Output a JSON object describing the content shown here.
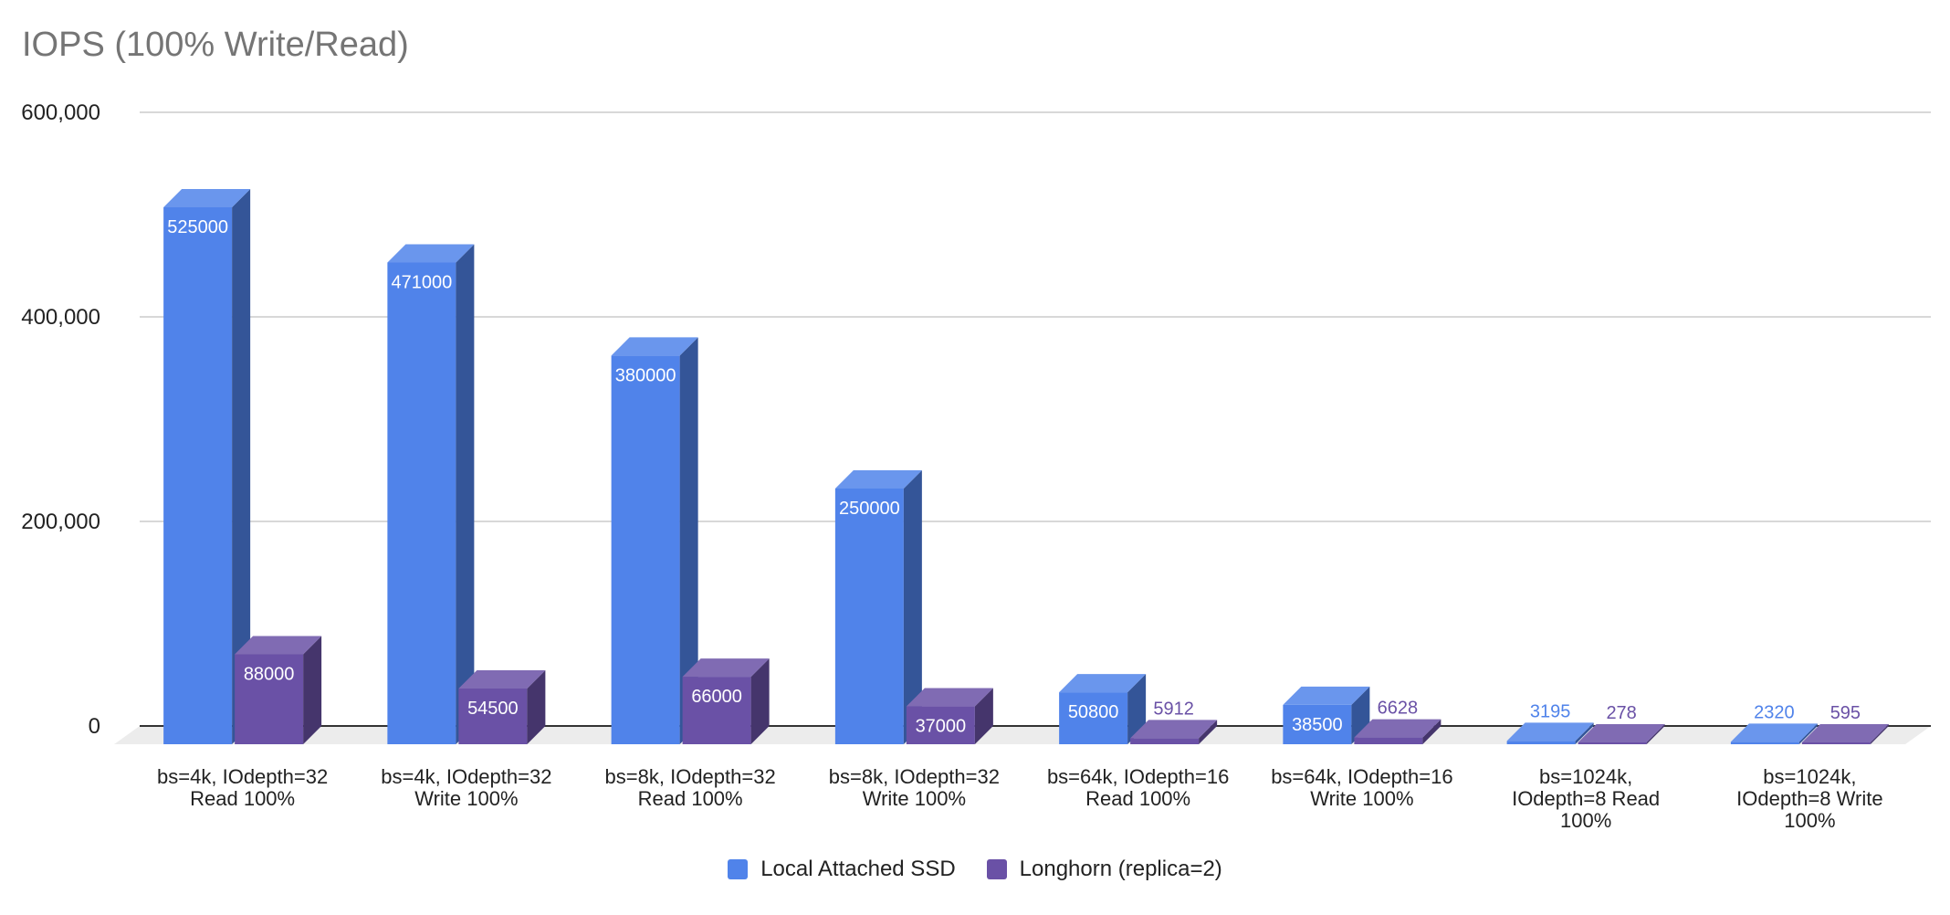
{
  "chart_data": {
    "type": "bar",
    "title": "IOPS (100% Write/Read)",
    "categories": [
      [
        "bs=4k, IOdepth=32",
        "Read 100%"
      ],
      [
        "bs=4k, IOdepth=32",
        "Write 100%"
      ],
      [
        "bs=8k, IOdepth=32",
        "Read 100%"
      ],
      [
        "bs=8k, IOdepth=32",
        "Write 100%"
      ],
      [
        "bs=64k, IOdepth=16",
        "Read 100%"
      ],
      [
        "bs=64k, IOdepth=16",
        "Write 100%"
      ],
      [
        "bs=1024k,",
        "IOdepth=8 Read",
        "100%"
      ],
      [
        "bs=1024k,",
        "IOdepth=8 Write",
        "100%"
      ]
    ],
    "series": [
      {
        "name": "Local Attached SSD",
        "color": "#5083ea",
        "values": [
          525000,
          471000,
          380000,
          250000,
          50800,
          38500,
          3195,
          2320
        ]
      },
      {
        "name": "Longhorn (replica=2)",
        "color": "#6a51a6",
        "values": [
          88000,
          54500,
          66000,
          37000,
          5912,
          6628,
          278,
          595
        ]
      }
    ],
    "ylim": [
      0,
      600000
    ],
    "yticks": [
      "0",
      "200,000",
      "400,000",
      "600,000"
    ],
    "ytick_values": [
      0,
      200000,
      400000,
      600000
    ],
    "grid": true,
    "legend": "bottom-center",
    "style": "3d-columns"
  }
}
